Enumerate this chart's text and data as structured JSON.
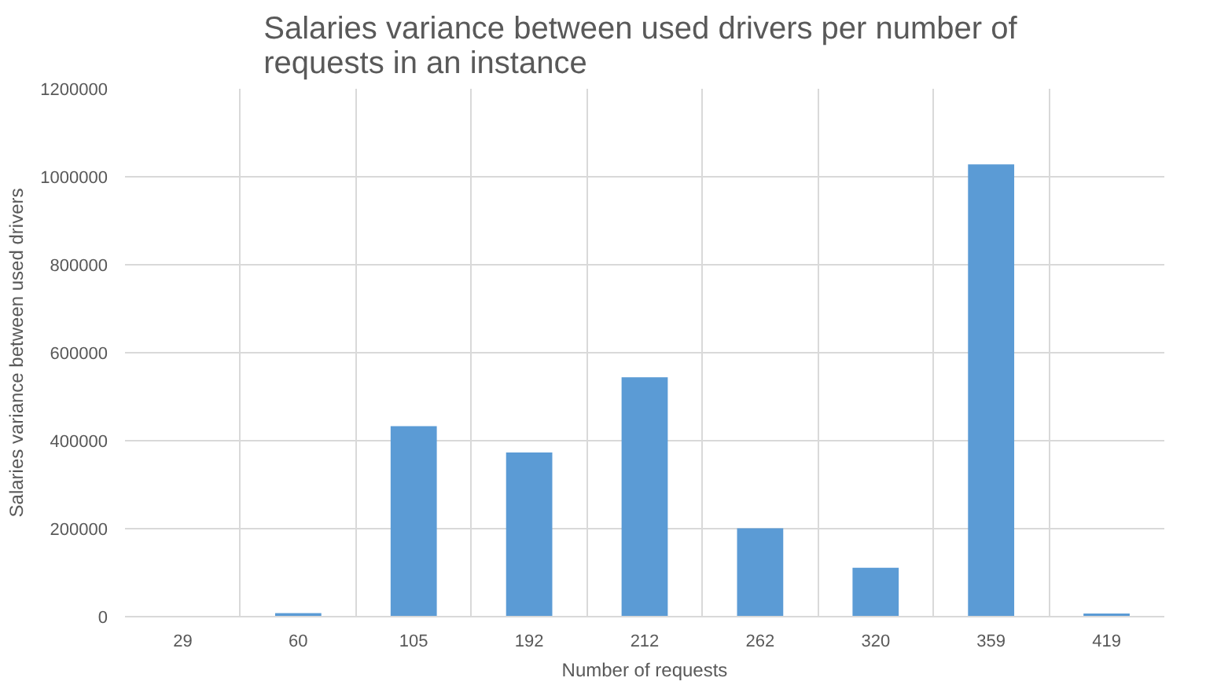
{
  "chart_data": {
    "type": "bar",
    "title": "Salaries variance  between used drivers per number of\nrequests in an instance",
    "xlabel": "Number of requests",
    "ylabel": "Salaries variance between used drivers",
    "categories": [
      "29",
      "60",
      "105",
      "192",
      "212",
      "262",
      "320",
      "359",
      "419"
    ],
    "values": [
      0,
      8000,
      433000,
      373000,
      544000,
      201000,
      111000,
      1028000,
      7000
    ],
    "color": "#5b9bd5",
    "ylim": [
      0,
      1200000
    ],
    "yticks": [
      0,
      200000,
      400000,
      600000,
      800000,
      1000000,
      1200000
    ],
    "grid": true
  }
}
